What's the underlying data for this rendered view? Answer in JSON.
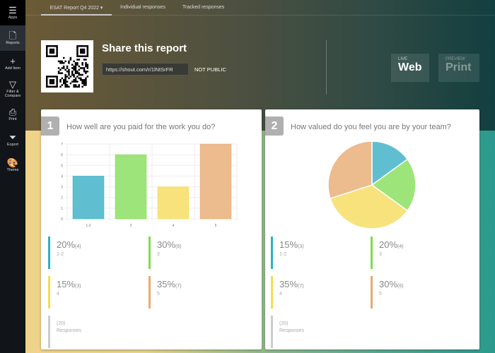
{
  "sidebar": {
    "items": [
      {
        "label": "Apps",
        "icon": "list-icon"
      },
      {
        "label": "Reports",
        "icon": "document-icon"
      },
      {
        "label": "Add Item",
        "icon": "plus-icon"
      },
      {
        "label": "Filter & Compare",
        "icon": "filter-icon"
      },
      {
        "label": "Print",
        "icon": "printer-icon"
      },
      {
        "label": "Export",
        "icon": "download-icon"
      },
      {
        "label": "Theme",
        "icon": "palette-icon"
      }
    ]
  },
  "tabs": [
    {
      "label": "ESAT Report Q4 2022 ▾",
      "active": true
    },
    {
      "label": "Individual responses"
    },
    {
      "label": "Tracked responses"
    }
  ],
  "share": {
    "title": "Share this report",
    "url": "https://shout.com/r/1lNtSrFR",
    "status": "NOT PUBLIC"
  },
  "modes": {
    "web": {
      "small": "LIVE",
      "big": "Web"
    },
    "print": {
      "small": "PREVIEW",
      "big": "Print"
    }
  },
  "colors": {
    "blue": "#5fbfd0",
    "green": "#9de57a",
    "yellow": "#f8e27c",
    "orange": "#ecbb8e",
    "blue_bar": "#2fb0c8",
    "green_bar": "#7ddd4e",
    "yellow_bar": "#f5dc50",
    "orange_bar": "#e8aa6e"
  },
  "cards": [
    {
      "number": "1",
      "question": "How well are you paid for the work you do?",
      "legend": [
        {
          "pct": "20%",
          "count": "(4)",
          "label": "1-2"
        },
        {
          "pct": "30%",
          "count": "(6)",
          "label": "3"
        },
        {
          "pct": "15%",
          "count": "(3)",
          "label": "4"
        },
        {
          "pct": "35%",
          "count": "(7)",
          "label": "5"
        }
      ],
      "total": {
        "count": "(20)",
        "label": "Responses"
      }
    },
    {
      "number": "2",
      "question": "How valued do you feel you are by your team?",
      "legend": [
        {
          "pct": "15%",
          "count": "(3)",
          "label": "1-2"
        },
        {
          "pct": "20%",
          "count": "(4)",
          "label": "3"
        },
        {
          "pct": "35%",
          "count": "(7)",
          "label": "4"
        },
        {
          "pct": "30%",
          "count": "(6)",
          "label": "5"
        }
      ],
      "total": {
        "count": "(20)",
        "label": "Responses"
      }
    }
  ],
  "chart_data": [
    {
      "type": "bar",
      "categories": [
        "1-2",
        "3",
        "4",
        "5"
      ],
      "values": [
        4,
        6,
        3,
        7
      ],
      "ylim": [
        0,
        7
      ],
      "yticks": [
        "0",
        "1",
        "2",
        "3",
        "4",
        "5",
        "6",
        "7"
      ],
      "grid": true
    },
    {
      "type": "pie",
      "categories": [
        "1-2",
        "3",
        "4",
        "5"
      ],
      "values": [
        15,
        20,
        35,
        30
      ]
    }
  ]
}
